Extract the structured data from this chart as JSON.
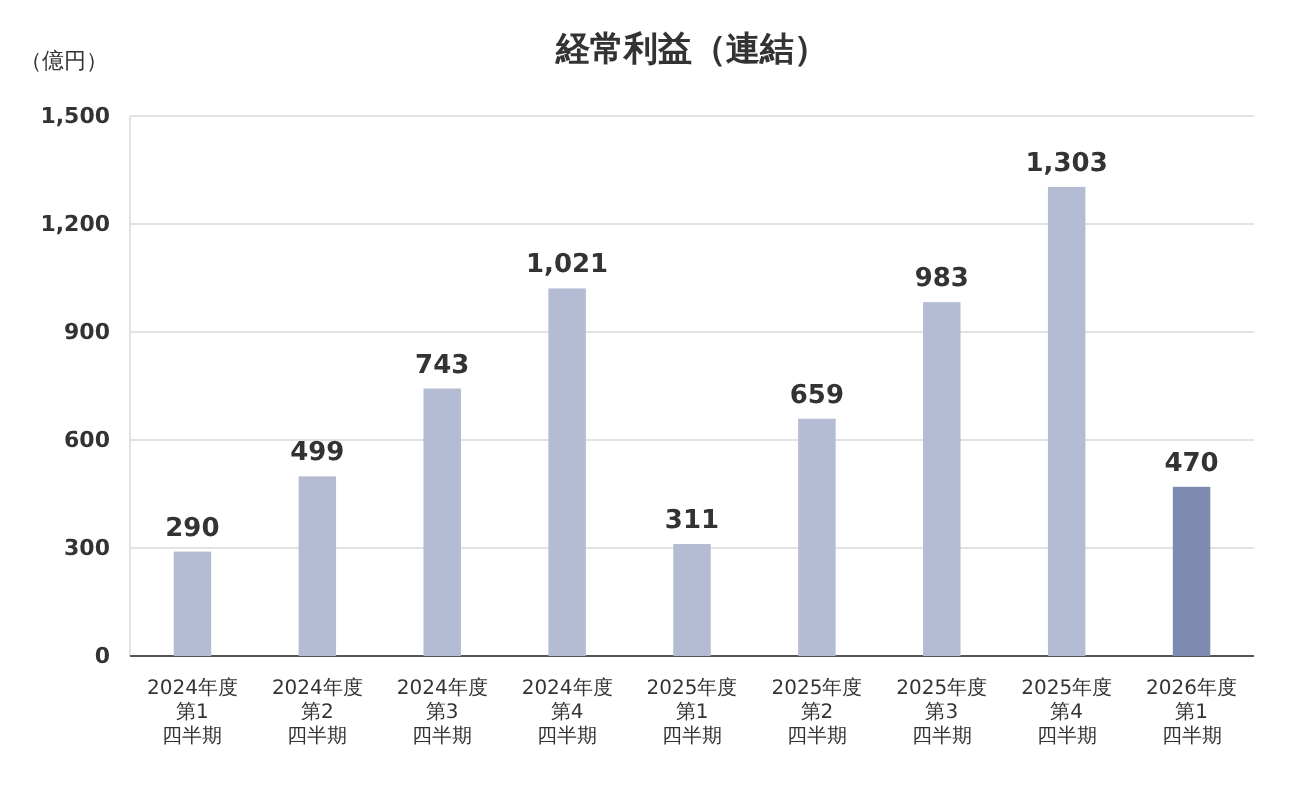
{
  "chart_data": {
    "type": "bar",
    "title": "経常利益（連結）",
    "ylabel": "（億円）",
    "categories": [
      "2024年度第1四半期",
      "2024年度第2四半期",
      "2024年度第3四半期",
      "2024年度第4四半期",
      "2025年度第1四半期",
      "2025年度第2四半期",
      "2025年度第3四半期",
      "2025年度第4四半期",
      "2026年度第1四半期"
    ],
    "values": [
      290,
      499,
      743,
      1021,
      311,
      659,
      983,
      1303,
      470
    ],
    "colors": [
      "#b4bcd3",
      "#b4bcd3",
      "#b4bcd3",
      "#b4bcd3",
      "#b4bcd3",
      "#b4bcd3",
      "#b4bcd3",
      "#b4bcd3",
      "#7e8bb1"
    ],
    "value_labels": [
      "290",
      "499",
      "743",
      "1,021",
      "311",
      "659",
      "983",
      "1,303",
      "470"
    ],
    "ylim": [
      0,
      1500
    ],
    "yticks": [
      0,
      300,
      600,
      900,
      {
        "value": 1200,
        "label": "1,200"
      },
      {
        "value": 1500,
        "label": "1,500"
      }
    ],
    "grid": "y"
  }
}
